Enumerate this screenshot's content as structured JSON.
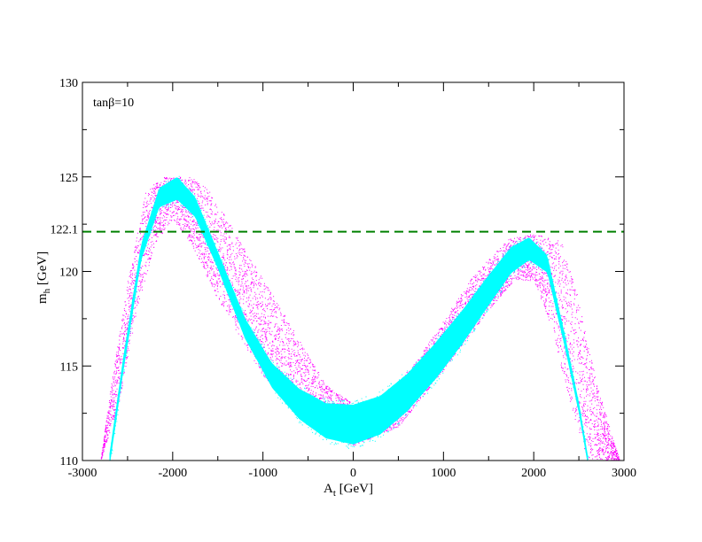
{
  "chart_data": {
    "type": "scatter",
    "title": "",
    "annotation": "tanβ=10",
    "xlabel": {
      "main": "A",
      "sub": "t",
      "unit": " [GeV]"
    },
    "ylabel": {
      "main": "m",
      "sub": "h",
      "unit": " [GeV]"
    },
    "xlim": [
      -3000,
      3000
    ],
    "ylim": [
      110,
      130
    ],
    "xticks": [
      -3000,
      -2000,
      -1000,
      0,
      1000,
      2000,
      3000
    ],
    "yticks": [
      110,
      115,
      120,
      125,
      130
    ],
    "extra_ytick": 122.1,
    "reference_line": {
      "y": 122.1,
      "style": "dashed",
      "color": "#008000"
    },
    "grid": false,
    "legend": "none",
    "series": [
      {
        "color": "#ff00ff",
        "band_lower": [
          [
            -2800,
            110
          ],
          [
            -2600,
            113
          ],
          [
            -2400,
            118
          ],
          [
            -2200,
            121.5
          ],
          [
            -2000,
            122.8
          ],
          [
            -1800,
            121.5
          ],
          [
            -1500,
            118.5
          ],
          [
            -1000,
            114.5
          ],
          [
            -500,
            112
          ],
          [
            0,
            110.8
          ],
          [
            500,
            111.8
          ],
          [
            1000,
            114.8
          ],
          [
            1500,
            118
          ],
          [
            1800,
            119.6
          ],
          [
            2000,
            119.5
          ],
          [
            2200,
            117
          ],
          [
            2400,
            113
          ],
          [
            2600,
            110
          ]
        ],
        "band_upper": [
          [
            -2800,
            110
          ],
          [
            -2700,
            113.5
          ],
          [
            -2500,
            119.5
          ],
          [
            -2300,
            124.3
          ],
          [
            -2100,
            125
          ],
          [
            -1800,
            125
          ],
          [
            -1600,
            124.3
          ],
          [
            -1300,
            122
          ],
          [
            -800,
            118
          ],
          [
            -300,
            114
          ],
          [
            0,
            113
          ],
          [
            400,
            113.5
          ],
          [
            800,
            116
          ],
          [
            1300,
            119.6
          ],
          [
            1700,
            121.7
          ],
          [
            2000,
            122
          ],
          [
            2300,
            121.6
          ],
          [
            2500,
            118.5
          ],
          [
            2700,
            114
          ],
          [
            2950,
            110
          ]
        ]
      },
      {
        "color": "#00ffff",
        "centerline": [
          [
            -2700,
            110
          ],
          [
            -2550,
            115
          ],
          [
            -2350,
            121
          ],
          [
            -2150,
            123.9
          ],
          [
            -1950,
            124.4
          ],
          [
            -1750,
            123.4
          ],
          [
            -1500,
            120.6
          ],
          [
            -1200,
            117
          ],
          [
            -900,
            114.5
          ],
          [
            -600,
            113
          ],
          [
            -300,
            112.1
          ],
          [
            0,
            111.9
          ],
          [
            300,
            112.4
          ],
          [
            600,
            113.6
          ],
          [
            900,
            115.2
          ],
          [
            1200,
            117
          ],
          [
            1500,
            119
          ],
          [
            1750,
            120.6
          ],
          [
            1950,
            121.2
          ],
          [
            2150,
            120.4
          ],
          [
            2350,
            116.2
          ],
          [
            2500,
            112.8
          ],
          [
            2600,
            110
          ]
        ],
        "width_points": [
          [
            -2700,
            0.35
          ],
          [
            -2300,
            0.45
          ],
          [
            -1950,
            0.6
          ],
          [
            -1500,
            0.45
          ],
          [
            -1000,
            0.6
          ],
          [
            -500,
            0.85
          ],
          [
            0,
            1.05
          ],
          [
            500,
            1.0
          ],
          [
            1000,
            0.95
          ],
          [
            1500,
            0.8
          ],
          [
            1950,
            0.6
          ],
          [
            2300,
            0.35
          ],
          [
            2600,
            0.25
          ]
        ]
      }
    ]
  }
}
